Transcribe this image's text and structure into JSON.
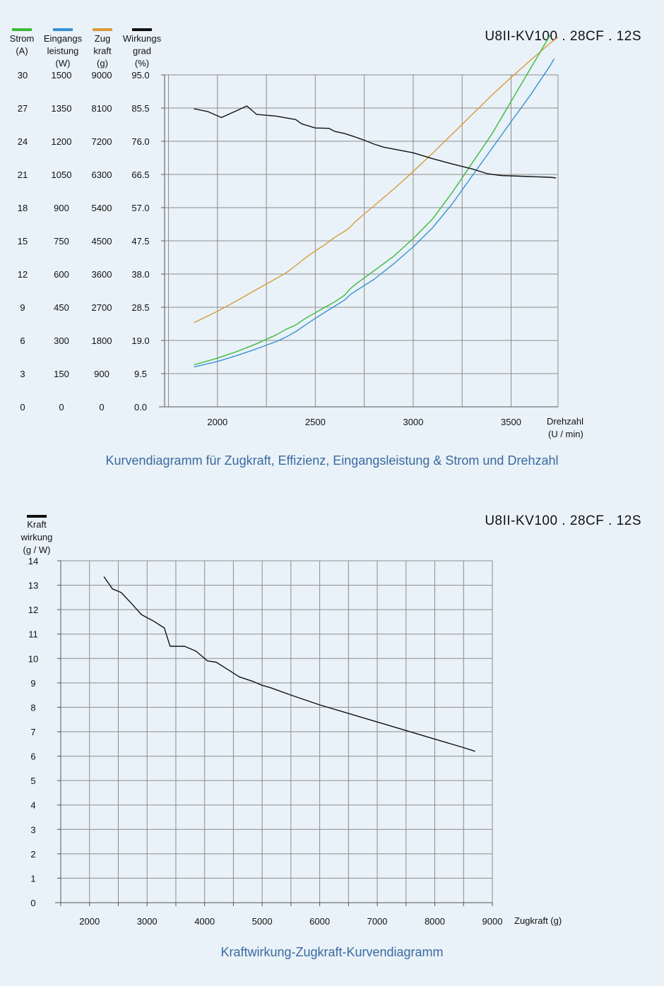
{
  "colors": {
    "strom": "#3cb93c",
    "eingangsleistung": "#3a8fd0",
    "zugkraft": "#d99a3a",
    "wirkungsgrad": "#111111",
    "caption": "#3a6aa0",
    "background": "#e9f2f8"
  },
  "chart_data": [
    {
      "type": "line",
      "model": "U8II-KV100 . 28CF . 12S",
      "caption": "Kurvendiagramm für Zugkraft, Effizienz, Eingangsleistung &  Strom und Drehzahl",
      "xlabel": "Drehzahl",
      "xlabel_unit": "(U / min)",
      "xlim": [
        1730,
        3740
      ],
      "x_ticks": [
        "2000",
        "2500",
        "3000",
        "3500"
      ],
      "grid": true,
      "legend_placement": "top-left",
      "axes": [
        {
          "key": "strom",
          "label_lines": [
            "Strom",
            "(A)"
          ],
          "ticks": [
            "0",
            "3",
            "6",
            "9",
            "12",
            "15",
            "18",
            "21",
            "24",
            "27",
            "30"
          ],
          "ylim": [
            0,
            30
          ]
        },
        {
          "key": "eingangsleistung",
          "label_lines": [
            "Eingangs",
            "leistung",
            "(W)"
          ],
          "ticks": [
            "0",
            "150",
            "300",
            "450",
            "600",
            "750",
            "900",
            "1050",
            "1200",
            "1350",
            "1500"
          ],
          "ylim": [
            0,
            1500
          ]
        },
        {
          "key": "zugkraft",
          "label_lines": [
            "Zug",
            "kraft",
            "(g)"
          ],
          "ticks": [
            "0",
            "900",
            "1800",
            "2700",
            "3600",
            "4500",
            "5400",
            "6300",
            "7200",
            "8100",
            "9000"
          ],
          "ylim": [
            0,
            9000
          ]
        },
        {
          "key": "wirkungsgrad",
          "label_lines": [
            "Wirkungs",
            "grad",
            "(%)"
          ],
          "ticks": [
            "0.0",
            "9.5",
            "19.0",
            "28.5",
            "38.0",
            "47.5",
            "57.0",
            "66.5",
            "76.0",
            "85.5",
            "95.0"
          ],
          "ylim": [
            0,
            95
          ]
        }
      ],
      "series": [
        {
          "key": "zugkraft",
          "name": "Zugkraft",
          "color": "#d99a3a",
          "x": [
            1880,
            2000,
            2100,
            2200,
            2300,
            2350,
            2400,
            2450,
            2500,
            2550,
            2600,
            2650,
            2680,
            2700,
            2800,
            2900,
            3000,
            3100,
            3200,
            3300,
            3400,
            3500,
            3600,
            3700,
            3740
          ],
          "y": [
            2280,
            2590,
            2880,
            3180,
            3480,
            3630,
            3830,
            4040,
            4230,
            4400,
            4600,
            4760,
            4880,
            5000,
            5450,
            5900,
            6380,
            6880,
            7400,
            7920,
            8440,
            8930,
            9400,
            9860,
            10020
          ]
        },
        {
          "key": "strom",
          "name": "Strom",
          "color": "#3cb93c",
          "x": [
            1880,
            2000,
            2100,
            2200,
            2300,
            2350,
            2400,
            2450,
            2500,
            2550,
            2600,
            2650,
            2680,
            2700,
            2800,
            2900,
            3000,
            3100,
            3200,
            3300,
            3400,
            3500,
            3600,
            3700
          ],
          "y": [
            3.8,
            4.4,
            5.0,
            5.7,
            6.5,
            7.0,
            7.4,
            8.0,
            8.5,
            9.0,
            9.5,
            10.1,
            10.7,
            11.0,
            12.3,
            13.6,
            15.2,
            17.0,
            19.4,
            22.0,
            24.6,
            27.6,
            30.6,
            33.6
          ]
        },
        {
          "key": "eingangsleistung",
          "name": "Eingangsleistung",
          "color": "#3a8fd0",
          "x": [
            1880,
            2000,
            2100,
            2200,
            2300,
            2350,
            2400,
            2450,
            2500,
            2550,
            2600,
            2650,
            2680,
            2700,
            2800,
            2900,
            3000,
            3100,
            3200,
            3300,
            3400,
            3500,
            3600,
            3700,
            3720
          ],
          "y": [
            180,
            205,
            232,
            262,
            295,
            315,
            340,
            370,
            400,
            428,
            455,
            483,
            508,
            520,
            576,
            646,
            723,
            810,
            918,
            1042,
            1165,
            1288,
            1410,
            1542,
            1573
          ]
        },
        {
          "key": "wirkungsgrad",
          "name": "Wirkungsgrad",
          "color": "#111111",
          "x": [
            1880,
            1950,
            2020,
            2100,
            2150,
            2200,
            2300,
            2400,
            2430,
            2500,
            2570,
            2600,
            2650,
            2700,
            2750,
            2800,
            2850,
            3000,
            3100,
            3200,
            3300,
            3380,
            3450,
            3500,
            3550,
            3600,
            3650,
            3700,
            3730
          ],
          "y": [
            85.3,
            84.5,
            82.8,
            84.8,
            86.1,
            83.7,
            83.2,
            82.2,
            81.0,
            79.8,
            79.7,
            78.8,
            78.2,
            77.3,
            76.3,
            75.2,
            74.3,
            72.7,
            71.0,
            69.5,
            68.1,
            66.7,
            66.2,
            66.1,
            66.0,
            65.9,
            65.8,
            65.7,
            65.5
          ]
        }
      ]
    },
    {
      "type": "line",
      "model": "U8II-KV100 . 28CF . 12S",
      "caption": "Kraftwirkung-Zugkraft-Kurvendiagramm",
      "ylabel_lines": [
        "Kraft",
        "wirkung",
        "(g / W)"
      ],
      "xlabel": "Zugkraft (g)",
      "xlim": [
        1500,
        9000
      ],
      "ylim": [
        0,
        14
      ],
      "x_ticks": [
        "2000",
        "3000",
        "4000",
        "5000",
        "6000",
        "7000",
        "8000",
        "9000"
      ],
      "y_ticks": [
        "0",
        "1",
        "2",
        "3",
        "4",
        "5",
        "6",
        "7",
        "8",
        "9",
        "10",
        "11",
        "12",
        "13",
        "14"
      ],
      "grid": true,
      "legend_placement": "top-left",
      "series": [
        {
          "key": "kraftwirkung",
          "name": "Kraftwirkung",
          "color": "#111111",
          "x": [
            2250,
            2400,
            2550,
            2750,
            2900,
            3100,
            3300,
            3400,
            3650,
            3850,
            4050,
            4200,
            4400,
            4600,
            4850,
            5000,
            5150,
            5500,
            6000,
            6500,
            7000,
            7500,
            8000,
            8500,
            8700
          ],
          "y": [
            13.35,
            12.85,
            12.7,
            12.2,
            11.8,
            11.55,
            11.25,
            10.5,
            10.5,
            10.3,
            9.9,
            9.85,
            9.55,
            9.25,
            9.05,
            8.9,
            8.8,
            8.5,
            8.1,
            7.75,
            7.4,
            7.05,
            6.7,
            6.35,
            6.2
          ]
        }
      ]
    }
  ]
}
